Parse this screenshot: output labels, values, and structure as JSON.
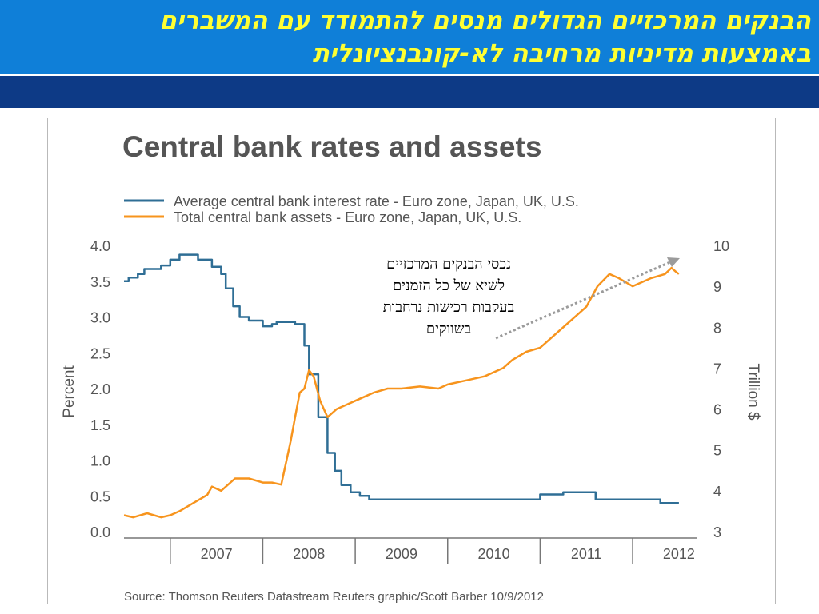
{
  "slide": {
    "title_line1": "הבנקים המרכזיים הגדולים מנסים להתמודד עם המשברים",
    "title_line2": "באמצעות מדיניות מרחיבה לא-קונבנציונלית",
    "annotation_lines": [
      "נכסי הבנקים המרכזיים",
      "לשיא של כל הזמנים",
      "בעקבות רכישות נרחבות",
      "בשווקים"
    ]
  },
  "colors": {
    "header_blue": "#0f7fd8",
    "header_dark": "#0d3a86",
    "title_yellow": "#ffff33",
    "rate_line": "#2f6e95",
    "assets_line": "#f7941d",
    "arrow": "#9b9b9b"
  },
  "chart_data": {
    "type": "line",
    "title": "Central bank rates and assets",
    "source": "Source: Thomson Reuters Datastream Reuters graphic/Scott Barber 10/9/2012",
    "xlabel": "",
    "ylabel": "Percent",
    "ylabel_right": "Trillion $",
    "x_ticks": [
      "2007",
      "2008",
      "2009",
      "2010",
      "2011",
      "2012"
    ],
    "xlim": [
      2006.5,
      2012.7
    ],
    "ylim": [
      0,
      4
    ],
    "y_ticks": [
      "0.0",
      "0.5",
      "1.0",
      "1.5",
      "2.0",
      "2.5",
      "3.0",
      "3.5",
      "4.0"
    ],
    "ylim_right": [
      3,
      10
    ],
    "y_ticks_right": [
      "3",
      "4",
      "5",
      "6",
      "7",
      "8",
      "9",
      "10"
    ],
    "grid": false,
    "legend": "top-left",
    "series": [
      {
        "name": "Average central bank interest rate - Euro zone, Japan, UK, U.S.",
        "axis": "left",
        "x": [
          2006.5,
          2006.55,
          2006.65,
          2006.72,
          2006.9,
          2007.0,
          2007.1,
          2007.3,
          2007.45,
          2007.55,
          2007.6,
          2007.68,
          2007.75,
          2007.85,
          2008.0,
          2008.1,
          2008.15,
          2008.35,
          2008.45,
          2008.5,
          2008.6,
          2008.7,
          2008.78,
          2008.85,
          2008.95,
          2009.05,
          2009.15,
          2009.3,
          2010.0,
          2010.5,
          2010.85,
          2011.0,
          2011.25,
          2011.5,
          2011.6,
          2011.75,
          2012.0,
          2012.2,
          2012.3,
          2012.5
        ],
        "y": [
          3.5,
          3.55,
          3.6,
          3.67,
          3.72,
          3.8,
          3.87,
          3.8,
          3.7,
          3.6,
          3.4,
          3.15,
          3.0,
          2.95,
          2.87,
          2.9,
          2.93,
          2.9,
          2.6,
          2.2,
          1.6,
          1.1,
          0.85,
          0.65,
          0.55,
          0.5,
          0.45,
          0.45,
          0.45,
          0.45,
          0.45,
          0.52,
          0.55,
          0.55,
          0.45,
          0.45,
          0.45,
          0.45,
          0.4,
          0.4
        ]
      },
      {
        "name": "Total central bank assets - Euro zone, Japan, UK, U.S.",
        "axis": "right",
        "x": [
          2006.5,
          2006.6,
          2006.75,
          2006.9,
          2007.0,
          2007.1,
          2007.25,
          2007.4,
          2007.45,
          2007.55,
          2007.7,
          2007.85,
          2008.0,
          2008.1,
          2008.2,
          2008.3,
          2008.35,
          2008.4,
          2008.45,
          2008.5,
          2008.55,
          2008.62,
          2008.7,
          2008.8,
          2008.9,
          2009.0,
          2009.1,
          2009.2,
          2009.35,
          2009.5,
          2009.7,
          2009.9,
          2010.0,
          2010.2,
          2010.4,
          2010.6,
          2010.7,
          2010.85,
          2011.0,
          2011.2,
          2011.35,
          2011.5,
          2011.62,
          2011.75,
          2011.85,
          2012.0,
          2012.2,
          2012.35,
          2012.42,
          2012.47,
          2012.5
        ],
        "y": [
          3.4,
          3.35,
          3.45,
          3.35,
          3.4,
          3.5,
          3.7,
          3.9,
          4.1,
          4.0,
          4.3,
          4.3,
          4.2,
          4.2,
          4.15,
          5.2,
          5.8,
          6.4,
          6.5,
          6.95,
          6.8,
          6.2,
          5.8,
          6.0,
          6.1,
          6.2,
          6.3,
          6.4,
          6.5,
          6.5,
          6.55,
          6.5,
          6.6,
          6.7,
          6.8,
          7.0,
          7.2,
          7.4,
          7.5,
          7.9,
          8.2,
          8.5,
          9.0,
          9.3,
          9.2,
          9.0,
          9.2,
          9.3,
          9.45,
          9.35,
          9.3
        ]
      }
    ]
  }
}
